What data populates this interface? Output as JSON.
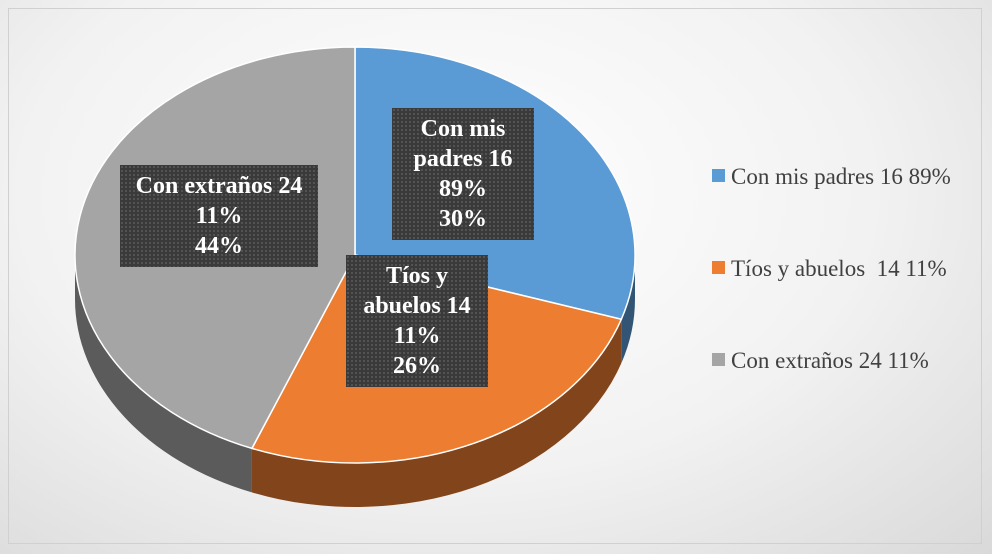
{
  "chart_data": {
    "type": "pie",
    "categories": [
      "Con mis padres 16 89%",
      "Tíos y abuelos  14 11%",
      "Con extraños 24 11%"
    ],
    "values": [
      30,
      26,
      44
    ],
    "value_labels": [
      "30%",
      "26%",
      "44%"
    ],
    "colors": [
      "#5b9bd5",
      "#ed7d31",
      "#a5a5a5"
    ],
    "legend": "right",
    "three_d": true
  }
}
